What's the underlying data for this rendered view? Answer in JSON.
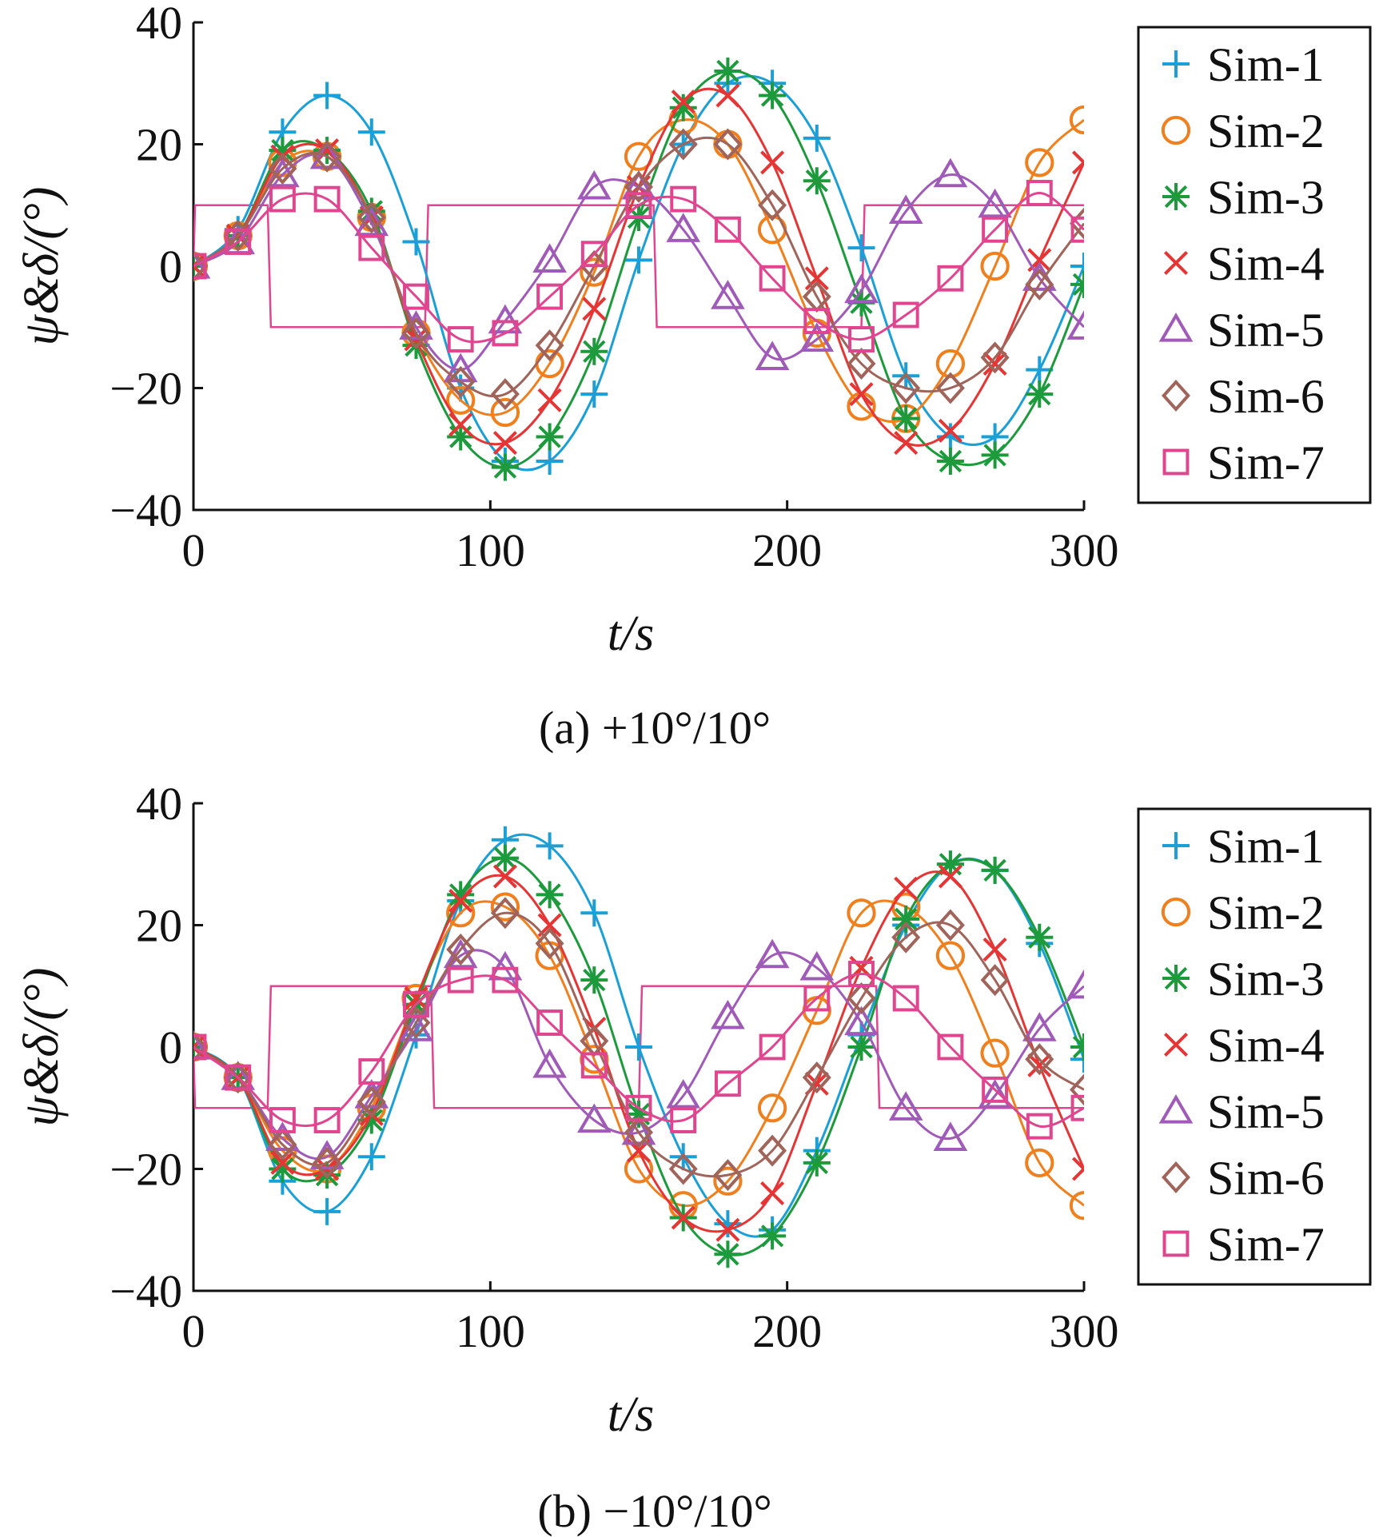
{
  "chart_data": [
    {
      "type": "line",
      "caption": "(a) +10°/10°",
      "xlabel": "t/s",
      "ylabel": "ψ&δ/(°)",
      "xlim": [
        0,
        300
      ],
      "ylim": [
        -40,
        40
      ],
      "xticks": [
        "0",
        "100",
        "200",
        "300"
      ],
      "yticks": [
        "40",
        "20",
        "0",
        "−20",
        "−40"
      ],
      "grid": false,
      "legend_position": "right",
      "series": [
        {
          "name": "Sim-1",
          "color": "#1a9fd6",
          "marker": "plus",
          "x": [
            0,
            15,
            30,
            45,
            60,
            75,
            90,
            105,
            120,
            135,
            150,
            165,
            180,
            195,
            210,
            225,
            240,
            255,
            270,
            285,
            300
          ],
          "y": [
            0,
            6,
            22,
            28,
            22,
            4,
            -20,
            -32,
            -32,
            -21,
            1,
            20,
            30,
            30,
            21,
            3,
            -18,
            -28,
            -28,
            -17,
            0
          ]
        },
        {
          "name": "Sim-2",
          "color": "#f07f1e",
          "marker": "circle",
          "x": [
            0,
            15,
            30,
            45,
            60,
            75,
            90,
            105,
            120,
            135,
            150,
            165,
            180,
            195,
            210,
            225,
            240,
            255,
            270,
            285,
            300
          ],
          "y": [
            0,
            5,
            17,
            18,
            8,
            -11,
            -22,
            -24,
            -16,
            -1,
            18,
            24,
            20,
            6,
            -11,
            -23,
            -25,
            -16,
            0,
            17,
            24
          ]
        },
        {
          "name": "Sim-3",
          "color": "#1c9a3c",
          "marker": "asterisk",
          "x": [
            0,
            15,
            30,
            45,
            60,
            75,
            90,
            105,
            120,
            135,
            150,
            165,
            180,
            195,
            210,
            225,
            240,
            255,
            270,
            285,
            300
          ],
          "y": [
            0,
            5,
            19,
            19,
            9,
            -13,
            -28,
            -33,
            -28,
            -14,
            8,
            26,
            32,
            28,
            14,
            -6,
            -25,
            -32,
            -31,
            -21,
            -3
          ]
        },
        {
          "name": "Sim-4",
          "color": "#e53535",
          "marker": "x",
          "x": [
            0,
            15,
            30,
            45,
            60,
            75,
            90,
            105,
            120,
            135,
            150,
            165,
            180,
            195,
            210,
            225,
            240,
            255,
            270,
            285,
            300
          ],
          "y": [
            0,
            5,
            18,
            19,
            8,
            -12,
            -26,
            -29,
            -22,
            -7,
            13,
            27,
            28,
            17,
            -2,
            -21,
            -29,
            -27,
            -16,
            1,
            17
          ]
        },
        {
          "name": "Sim-5",
          "color": "#a05ab8",
          "marker": "triangle",
          "x": [
            0,
            15,
            30,
            45,
            60,
            75,
            90,
            105,
            120,
            135,
            150,
            165,
            180,
            195,
            210,
            225,
            240,
            255,
            270,
            285,
            300
          ],
          "y": [
            0,
            4,
            15,
            18,
            7,
            -10,
            -17,
            -9,
            1,
            13,
            13,
            6,
            -5,
            -15,
            -12,
            -4,
            9,
            15,
            10,
            -2,
            -10
          ]
        },
        {
          "name": "Sim-6",
          "color": "#a0645a",
          "marker": "diamond",
          "x": [
            0,
            15,
            30,
            45,
            60,
            75,
            90,
            105,
            120,
            135,
            150,
            165,
            180,
            195,
            210,
            225,
            240,
            255,
            270,
            285,
            300
          ],
          "y": [
            0,
            5,
            16,
            18,
            8,
            -11,
            -19,
            -21,
            -13,
            0,
            13,
            20,
            20,
            10,
            -5,
            -16,
            -20,
            -20,
            -15,
            -3,
            7
          ]
        },
        {
          "name": "Sim-7",
          "color": "#e0458f",
          "marker": "square",
          "x": [
            0,
            15,
            30,
            45,
            60,
            75,
            90,
            105,
            120,
            135,
            150,
            165,
            180,
            195,
            210,
            225,
            240,
            255,
            270,
            285,
            300
          ],
          "y": [
            0,
            4,
            11,
            11,
            3,
            -5,
            -12,
            -11,
            -5,
            2,
            10,
            11,
            6,
            -2,
            -9,
            -12,
            -8,
            -2,
            6,
            12,
            6
          ]
        }
      ],
      "rudder": {
        "color": "#e0458f",
        "amplitude": 10,
        "switch_times": [
          0,
          25,
          78,
          155,
          225,
          300
        ],
        "start_sign": 1
      }
    },
    {
      "type": "line",
      "caption": "(b) −10°/10°",
      "xlabel": "t/s",
      "ylabel": "ψ&δ/(°)",
      "xlim": [
        0,
        300
      ],
      "ylim": [
        -40,
        40
      ],
      "xticks": [
        "0",
        "100",
        "200",
        "300"
      ],
      "yticks": [
        "40",
        "20",
        "0",
        "−20",
        "−40"
      ],
      "grid": false,
      "legend_position": "right",
      "series": [
        {
          "name": "Sim-1",
          "color": "#1a9fd6",
          "marker": "plus",
          "x": [
            0,
            15,
            30,
            45,
            60,
            75,
            90,
            105,
            120,
            135,
            150,
            165,
            180,
            195,
            210,
            225,
            240,
            255,
            270,
            285,
            300
          ],
          "y": [
            0,
            -5,
            -22,
            -27,
            -18,
            2,
            24,
            34,
            33,
            22,
            0,
            -18,
            -29,
            -30,
            -17,
            2,
            20,
            30,
            29,
            17,
            -2
          ]
        },
        {
          "name": "Sim-2",
          "color": "#f07f1e",
          "marker": "circle",
          "x": [
            0,
            15,
            30,
            45,
            60,
            75,
            90,
            105,
            120,
            135,
            150,
            165,
            180,
            195,
            210,
            225,
            240,
            255,
            270,
            285,
            300
          ],
          "y": [
            0,
            -5,
            -17,
            -20,
            -10,
            8,
            22,
            23,
            15,
            -2,
            -20,
            -26,
            -22,
            -10,
            6,
            22,
            23,
            15,
            -1,
            -19,
            -26
          ]
        },
        {
          "name": "Sim-3",
          "color": "#1c9a3c",
          "marker": "asterisk",
          "x": [
            0,
            15,
            30,
            45,
            60,
            75,
            90,
            105,
            120,
            135,
            150,
            165,
            180,
            195,
            210,
            225,
            240,
            255,
            270,
            285,
            300
          ],
          "y": [
            0,
            -5,
            -20,
            -21,
            -12,
            7,
            25,
            31,
            25,
            11,
            -11,
            -28,
            -34,
            -31,
            -19,
            0,
            21,
            30,
            29,
            18,
            0
          ]
        },
        {
          "name": "Sim-4",
          "color": "#e53535",
          "marker": "x",
          "x": [
            0,
            15,
            30,
            45,
            60,
            75,
            90,
            105,
            120,
            135,
            150,
            165,
            180,
            195,
            210,
            225,
            240,
            255,
            270,
            285,
            300
          ],
          "y": [
            0,
            -5,
            -19,
            -20,
            -11,
            8,
            24,
            28,
            20,
            3,
            -17,
            -28,
            -30,
            -24,
            -6,
            13,
            26,
            28,
            16,
            -3,
            -20
          ]
        },
        {
          "name": "Sim-5",
          "color": "#a05ab8",
          "marker": "triangle",
          "x": [
            0,
            15,
            30,
            45,
            60,
            75,
            90,
            105,
            120,
            135,
            150,
            165,
            180,
            195,
            210,
            225,
            240,
            255,
            270,
            285,
            300
          ],
          "y": [
            0,
            -5,
            -15,
            -18,
            -8,
            3,
            15,
            13,
            -3,
            -12,
            -14,
            -8,
            5,
            15,
            13,
            4,
            -10,
            -15,
            -8,
            3,
            10
          ]
        },
        {
          "name": "Sim-6",
          "color": "#a0645a",
          "marker": "diamond",
          "x": [
            0,
            15,
            30,
            45,
            60,
            75,
            90,
            105,
            120,
            135,
            150,
            165,
            180,
            195,
            210,
            225,
            240,
            255,
            270,
            285,
            300
          ],
          "y": [
            0,
            -5,
            -16,
            -19,
            -9,
            4,
            16,
            22,
            17,
            1,
            -14,
            -20,
            -21,
            -17,
            -5,
            8,
            18,
            20,
            11,
            -2,
            -7
          ]
        },
        {
          "name": "Sim-7",
          "color": "#e0458f",
          "marker": "square",
          "x": [
            0,
            15,
            30,
            45,
            60,
            75,
            90,
            105,
            120,
            135,
            150,
            165,
            180,
            195,
            210,
            225,
            240,
            255,
            270,
            285,
            300
          ],
          "y": [
            0,
            -5,
            -12,
            -12,
            -4,
            7,
            11,
            11,
            4,
            -3,
            -10,
            -12,
            -6,
            0,
            8,
            12,
            8,
            0,
            -7,
            -13,
            -10
          ]
        }
      ],
      "rudder": {
        "color": "#e0458f",
        "amplitude": 10,
        "switch_times": [
          0,
          25,
          80,
          150,
          230,
          300
        ],
        "start_sign": -1
      }
    }
  ]
}
